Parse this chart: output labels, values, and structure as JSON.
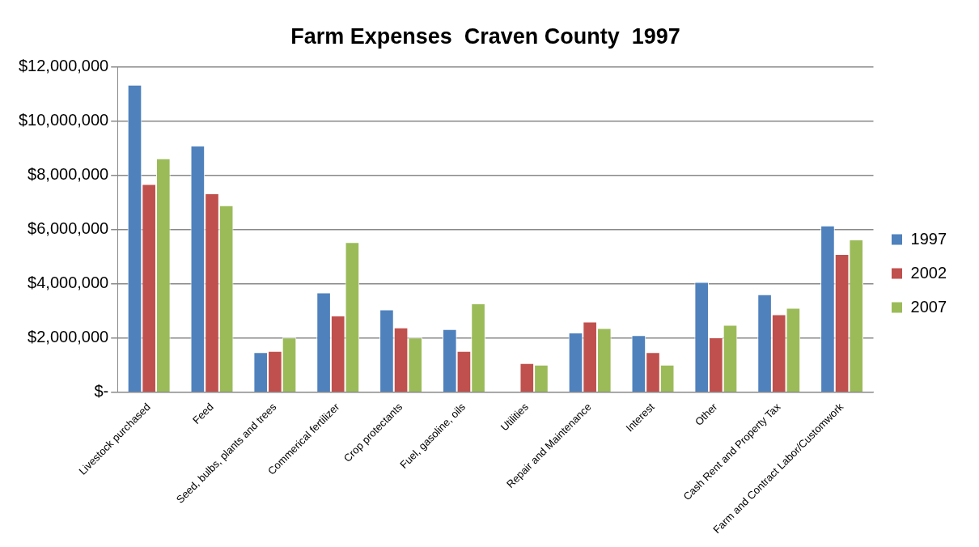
{
  "chart_data": {
    "type": "bar",
    "title": "Farm Expenses  Craven County  1997",
    "categories": [
      "Livestock purchased",
      "Feed",
      "Seed, bulbs, plants and trees",
      "Commerical fertilizer",
      "Crop protectants",
      "Fuel, gasoline, oils",
      "Utilities",
      "Repair and Maintenance",
      "Interest",
      "Other",
      "Cash Rent and Property Tax",
      "Farm and Contract Labor/Customwork"
    ],
    "series": [
      {
        "name": "1997",
        "color": "#4f81bd",
        "values": [
          11330000,
          9090000,
          1470000,
          3670000,
          3050000,
          2320000,
          null,
          2200000,
          2100000,
          4060000,
          3610000,
          6140000
        ]
      },
      {
        "name": "2002",
        "color": "#c0504d",
        "values": [
          7670000,
          7330000,
          1520000,
          2820000,
          2380000,
          1520000,
          1070000,
          2600000,
          1470000,
          2020000,
          2870000,
          5090000
        ]
      },
      {
        "name": "2007",
        "color": "#9bbb59",
        "values": [
          8620000,
          6890000,
          2010000,
          5530000,
          2010000,
          3270000,
          1010000,
          2360000,
          1010000,
          2480000,
          3110000,
          5630000
        ]
      }
    ],
    "ylim": [
      0,
      12000000
    ],
    "yticks": [
      {
        "value": 0,
        "label": "$-"
      },
      {
        "value": 2000000,
        "label": "$2,000,000"
      },
      {
        "value": 4000000,
        "label": "$4,000,000"
      },
      {
        "value": 6000000,
        "label": "$6,000,000"
      },
      {
        "value": 8000000,
        "label": "$8,000,000"
      },
      {
        "value": 10000000,
        "label": "$10,000,000"
      },
      {
        "value": 12000000,
        "label": "$12,000,000"
      }
    ],
    "grid": "y",
    "legend": "right"
  }
}
